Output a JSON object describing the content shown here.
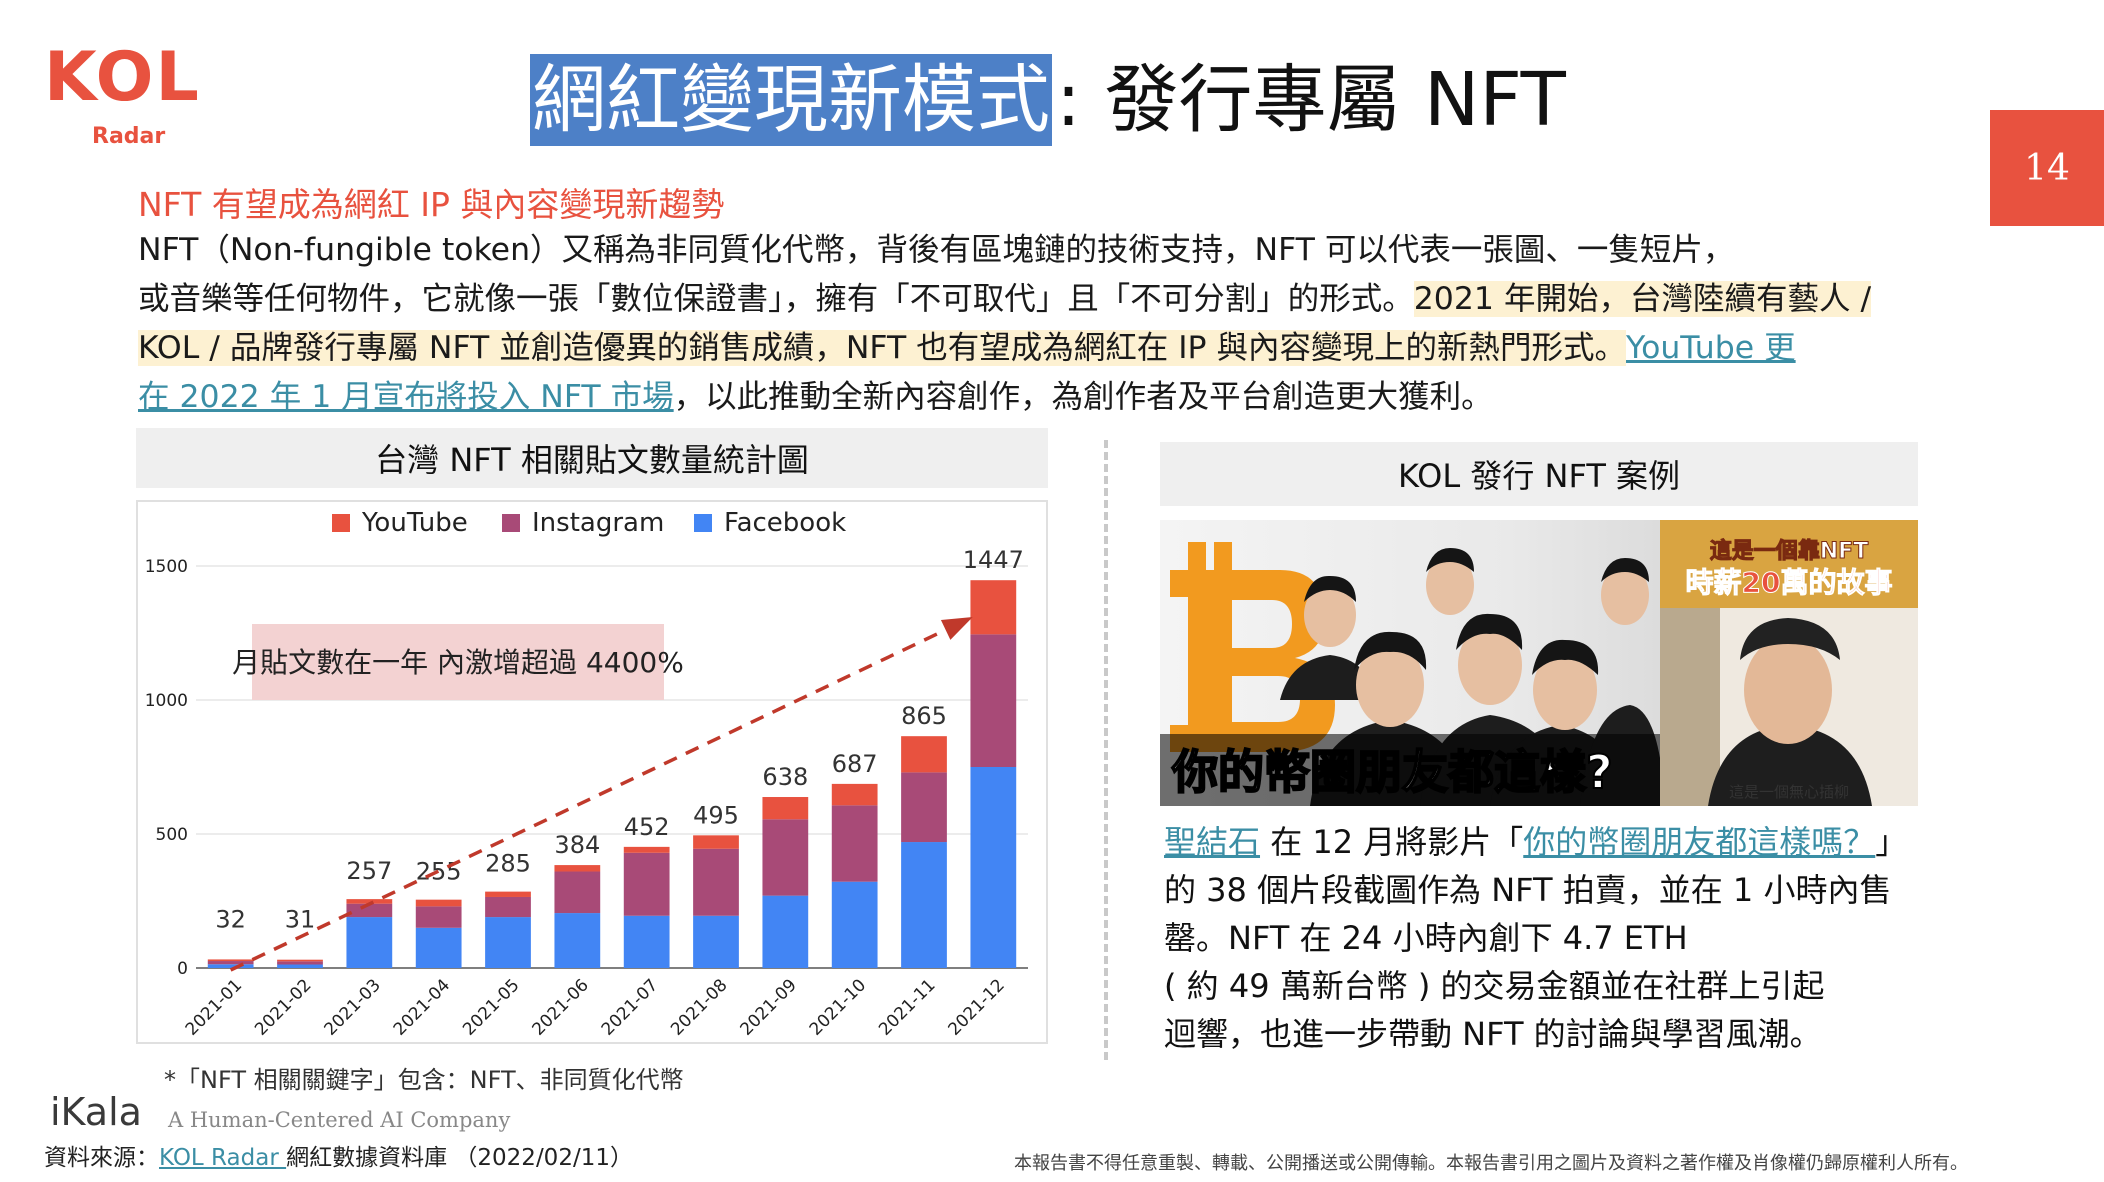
{
  "logo": {
    "main": "KOL",
    "sub": "Radar"
  },
  "title": {
    "highlight": "網紅變現新模式",
    "rest": ": 發行專屬 NFT"
  },
  "page_number": "14",
  "intro": {
    "heading": "NFT 有望成為網紅 IP 與內容變現新趨勢",
    "line1": "NFT（Non-fungible token）又稱為非同質化代幣，背後有區塊鏈的技術支持，NFT 可以代表一張圖、一隻短片，",
    "line2_plain": "或音樂等任何物件，它就像一張「數位保證書」，擁有「不可取代」且「不可分割」的形式。",
    "line2_mark": "2021 年開始，台灣陸續有藝人 /",
    "line3_mark": "KOL / 品牌發行專屬 NFT 並創造優異的銷售成績，NFT 也有望成為網紅在 IP 與內容變現上的新熱門形式。",
    "line3_link": "YouTube 更",
    "line4_link": "在 2022 年 1 月宣布將投入 NFT 市場",
    "line4_rest": "，以此推動全新內容創作，為創作者及平台創造更大獲利。"
  },
  "chart_panel": {
    "title": "台灣 NFT 相關貼文數量統計圖",
    "note": "*「NFT 相關關鍵字」包含：NFT、非同質化代幣"
  },
  "chart_data": {
    "type": "bar",
    "stacked": true,
    "categories": [
      "2021-01",
      "2021-02",
      "2021-03",
      "2021-04",
      "2021-05",
      "2021-06",
      "2021-07",
      "2021-08",
      "2021-09",
      "2021-10",
      "2021-11",
      "2021-12"
    ],
    "series": [
      {
        "name": "Facebook",
        "color": "#4285f4",
        "values": [
          14,
          13,
          190,
          150,
          190,
          205,
          195,
          195,
          270,
          322,
          470,
          750
        ]
      },
      {
        "name": "Instagram",
        "color": "#a84a77",
        "values": [
          12,
          12,
          50,
          80,
          75,
          155,
          235,
          250,
          285,
          285,
          260,
          495
        ]
      },
      {
        "name": "YouTube",
        "color": "#e8523f",
        "values": [
          6,
          6,
          17,
          25,
          20,
          24,
          22,
          50,
          83,
          80,
          135,
          202
        ]
      }
    ],
    "totals": [
      32,
      31,
      257,
      255,
      285,
      384,
      452,
      495,
      638,
      687,
      865,
      1447
    ],
    "legend_order": [
      "YouTube",
      "Instagram",
      "Facebook"
    ],
    "legend_position": "top",
    "yticks": [
      0,
      500,
      1000,
      1500
    ],
    "ylim": [
      0,
      1600
    ],
    "grid": true,
    "annotation": "月貼文數在一年 內激增超過 4400%",
    "trend_arrow": {
      "from_category": "2021-01",
      "to_category": "2021-12",
      "color": "#c0392b"
    }
  },
  "case_panel": {
    "title": "KOL 發行 NFT 案例",
    "image": {
      "caption_big": "你的幣圈朋友都這樣?",
      "badge_line1": "這是一個靠NFT",
      "badge_line2": "時薪20萬的故事",
      "subtitle": "這是一個無心插柳"
    },
    "text": {
      "creator_link": "聖結石",
      "l1_mid": " 在 12 月將影片「",
      "video_link": "你的幣圈朋友都這樣嗎？",
      "l1_end": "」",
      "l2": "的 38 個片段截圖作為 NFT 拍賣，並在 1 小時內售",
      "l3": "罄。NFT 在 24 小時內創下 4.7 ETH",
      "l4": "( 約 49 萬新台幣 ) 的交易金額並在社群上引起",
      "l5": "迴響，也進一步帶動 NFT 的討論與學習風潮。"
    }
  },
  "footer": {
    "ikala": "iKala",
    "ikala_tagline": "A Human-Centered AI Company",
    "source_prefix": "資料來源：",
    "source_link": "KOL Radar ",
    "source_rest": "網紅數據資料庫 （2022/02/11）",
    "disclaimer": "本報告書不得任意重製、轉載、公開播送或公開傳輸。本報告書引用之圖片及資料之著作權及肖像權仍歸原權利人所有。"
  },
  "colors": {
    "accent": "#e8523f",
    "title_highlight": "#4d80c7",
    "link": "#3b8ea5",
    "mark": "#fdf1d2"
  }
}
